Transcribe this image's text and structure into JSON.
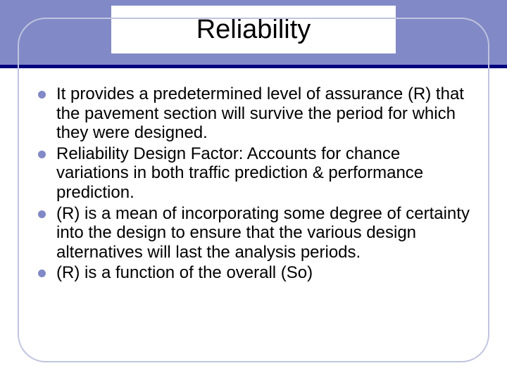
{
  "slide": {
    "title": "Reliability",
    "header_band_color": "#8189c6",
    "divider_color": "#000080",
    "frame_border_color": "#c0c4e0",
    "bullet_color": "#8189c6",
    "title_fontsize": 38,
    "body_fontsize": 24,
    "bullets": [
      "It provides a predetermined level of assurance (R) that the pavement section will survive the period for which they were designed.",
      "Reliability Design Factor: Accounts for chance variations in both traffic prediction & performance prediction.",
      "(R) is a mean of incorporating some degree of certainty into the design to ensure that the various design alternatives will last the analysis periods.",
      "(R) is a function of the overall (So)"
    ]
  }
}
